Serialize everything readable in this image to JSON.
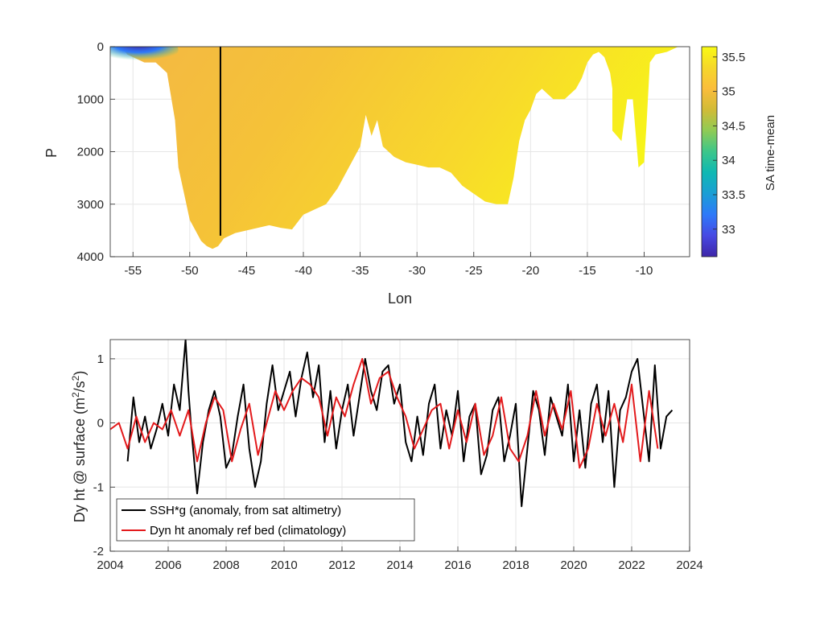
{
  "chart_data": [
    {
      "type": "heatmap",
      "title": "",
      "xlabel": "Lon",
      "ylabel": "P",
      "xlim": [
        -57,
        -6
      ],
      "ylim": [
        0,
        4000
      ],
      "y_reversed": true,
      "xticks": [
        -55,
        -50,
        -45,
        -40,
        -35,
        -30,
        -25,
        -20,
        -15,
        -10
      ],
      "yticks": [
        0,
        1000,
        2000,
        3000,
        4000
      ],
      "colorbar": {
        "label": "SA time-mean",
        "range": [
          32.6,
          35.65
        ],
        "ticks": [
          33,
          33.5,
          34,
          34.5,
          35,
          35.5
        ],
        "colors": [
          "#3e26a8",
          "#4749e3",
          "#2e79f9",
          "#1a9ed5",
          "#0fb8b3",
          "#3cc68a",
          "#8fcb55",
          "#d1bb37",
          "#fbbd3b",
          "#f5d72a",
          "#f9fa14"
        ]
      },
      "vertical_line_lon": -47.3,
      "vertical_line_range": [
        0,
        3600
      ],
      "bottom_depth_profile": [
        [
          -56,
          0
        ],
        [
          -55.5,
          150
        ],
        [
          -55,
          200
        ],
        [
          -54,
          300
        ],
        [
          -53,
          300
        ],
        [
          -52,
          500
        ],
        [
          -51.3,
          1400
        ],
        [
          -51,
          2300
        ],
        [
          -50.5,
          2800
        ],
        [
          -50,
          3300
        ],
        [
          -49.5,
          3500
        ],
        [
          -49,
          3700
        ],
        [
          -48.5,
          3800
        ],
        [
          -48,
          3850
        ],
        [
          -47.5,
          3800
        ],
        [
          -47,
          3650
        ],
        [
          -46,
          3550
        ],
        [
          -45,
          3500
        ],
        [
          -44,
          3450
        ],
        [
          -43,
          3400
        ],
        [
          -42,
          3450
        ],
        [
          -41,
          3480
        ],
        [
          -40,
          3200
        ],
        [
          -39,
          3100
        ],
        [
          -38,
          3000
        ],
        [
          -37,
          2700
        ],
        [
          -36,
          2300
        ],
        [
          -35,
          1900
        ],
        [
          -34.5,
          1300
        ],
        [
          -34,
          1700
        ],
        [
          -33.5,
          1400
        ],
        [
          -33,
          1900
        ],
        [
          -32,
          2100
        ],
        [
          -31,
          2200
        ],
        [
          -30,
          2250
        ],
        [
          -29,
          2300
        ],
        [
          -28,
          2300
        ],
        [
          -27,
          2400
        ],
        [
          -26,
          2650
        ],
        [
          -25,
          2800
        ],
        [
          -24,
          2950
        ],
        [
          -23,
          3000
        ],
        [
          -22,
          3000
        ],
        [
          -21.5,
          2500
        ],
        [
          -21,
          1800
        ],
        [
          -20.5,
          1400
        ],
        [
          -20,
          1200
        ],
        [
          -19.5,
          900
        ],
        [
          -19,
          800
        ],
        [
          -18.5,
          900
        ],
        [
          -18,
          1000
        ],
        [
          -17.5,
          1000
        ],
        [
          -17,
          1000
        ],
        [
          -16,
          800
        ],
        [
          -15.5,
          600
        ],
        [
          -15,
          300
        ],
        [
          -14.5,
          150
        ],
        [
          -14,
          100
        ],
        [
          -13.5,
          200
        ],
        [
          -13,
          500
        ],
        [
          -12.8,
          800
        ],
        [
          -12.8,
          1600
        ],
        [
          -12,
          1800
        ],
        [
          -11.5,
          1000
        ],
        [
          -11,
          1000
        ],
        [
          -10.5,
          2300
        ],
        [
          -10,
          2200
        ],
        [
          -9.8,
          1500
        ],
        [
          -9.5,
          300
        ],
        [
          -9,
          150
        ],
        [
          -8,
          100
        ],
        [
          -7,
          0
        ]
      ]
    },
    {
      "type": "line",
      "title": "",
      "xlabel": "",
      "ylabel": "Dy ht @ surface (m",
      "ylabel_sup": "2",
      "ylabel_mid": "/s",
      "ylabel_end": ")",
      "xlim": [
        2004,
        2024
      ],
      "ylim": [
        -2,
        1.3
      ],
      "xticks": [
        2004,
        2006,
        2008,
        2010,
        2012,
        2014,
        2016,
        2018,
        2020,
        2022,
        2024
      ],
      "yticks": [
        -2,
        -1,
        0,
        1
      ],
      "legend_position": "bottom-left",
      "series": [
        {
          "name": "SSH*g (anomaly, from sat altimetry)",
          "color": "#000000",
          "x": [
            2004.6,
            2004.8,
            2005.0,
            2005.2,
            2005.4,
            2005.6,
            2005.8,
            2006.0,
            2006.2,
            2006.4,
            2006.6,
            2006.7,
            2006.8,
            2007.0,
            2007.2,
            2007.4,
            2007.6,
            2007.8,
            2008.0,
            2008.2,
            2008.4,
            2008.6,
            2008.8,
            2009.0,
            2009.2,
            2009.4,
            2009.6,
            2009.8,
            2010.0,
            2010.2,
            2010.4,
            2010.6,
            2010.8,
            2011.0,
            2011.2,
            2011.4,
            2011.6,
            2011.8,
            2012.0,
            2012.2,
            2012.4,
            2012.6,
            2012.8,
            2013.0,
            2013.2,
            2013.4,
            2013.6,
            2013.8,
            2014.0,
            2014.2,
            2014.4,
            2014.6,
            2014.8,
            2015.0,
            2015.2,
            2015.4,
            2015.6,
            2015.8,
            2016.0,
            2016.2,
            2016.4,
            2016.6,
            2016.8,
            2017.0,
            2017.2,
            2017.4,
            2017.6,
            2017.8,
            2018.0,
            2018.2,
            2018.4,
            2018.6,
            2018.8,
            2019.0,
            2019.2,
            2019.4,
            2019.6,
            2019.8,
            2020.0,
            2020.2,
            2020.4,
            2020.6,
            2020.8,
            2021.0,
            2021.2,
            2021.4,
            2021.6,
            2021.8,
            2022.0,
            2022.2,
            2022.4,
            2022.6,
            2022.8,
            2023.0,
            2023.2,
            2023.4
          ],
          "values": [
            -0.6,
            0.4,
            -0.3,
            0.1,
            -0.4,
            -0.1,
            0.3,
            -0.2,
            0.6,
            0.2,
            1.3,
            0.5,
            -0.1,
            -1.1,
            -0.3,
            0.2,
            0.5,
            0.1,
            -0.7,
            -0.5,
            0.1,
            0.6,
            -0.4,
            -1.0,
            -0.6,
            0.3,
            0.9,
            0.2,
            0.5,
            0.8,
            0.1,
            0.7,
            1.1,
            0.4,
            0.9,
            -0.3,
            0.5,
            -0.4,
            0.2,
            0.6,
            -0.2,
            0.4,
            1.0,
            0.5,
            0.2,
            0.8,
            0.9,
            0.3,
            0.6,
            -0.3,
            -0.6,
            0.1,
            -0.5,
            0.3,
            0.6,
            -0.4,
            0.2,
            -0.2,
            0.5,
            -0.6,
            0.1,
            0.3,
            -0.8,
            -0.5,
            0.2,
            0.4,
            -0.6,
            -0.2,
            0.3,
            -1.3,
            -0.4,
            0.5,
            0.2,
            -0.5,
            0.4,
            0.1,
            -0.2,
            0.6,
            -0.6,
            0.2,
            -0.7,
            0.3,
            0.6,
            -0.3,
            0.5,
            -1.0,
            0.2,
            0.4,
            0.8,
            1.0,
            0.2,
            -0.6,
            0.9,
            -0.4,
            0.1,
            0.2
          ]
        },
        {
          "name": "Dyn ht anomaly ref bed (climatology)",
          "color": "#e31a1c",
          "x": [
            2004.0,
            2004.3,
            2004.6,
            2004.9,
            2005.2,
            2005.5,
            2005.8,
            2006.1,
            2006.4,
            2006.7,
            2007.0,
            2007.3,
            2007.6,
            2007.9,
            2008.2,
            2008.5,
            2008.8,
            2009.1,
            2009.4,
            2009.7,
            2010.0,
            2010.3,
            2010.6,
            2010.9,
            2011.2,
            2011.5,
            2011.8,
            2012.1,
            2012.4,
            2012.7,
            2013.0,
            2013.3,
            2013.6,
            2013.9,
            2014.2,
            2014.5,
            2014.8,
            2015.1,
            2015.4,
            2015.7,
            2016.0,
            2016.3,
            2016.6,
            2016.9,
            2017.2,
            2017.5,
            2017.8,
            2018.1,
            2018.4,
            2018.7,
            2019.0,
            2019.3,
            2019.6,
            2019.9,
            2020.2,
            2020.5,
            2020.8,
            2021.1,
            2021.4,
            2021.7,
            2022.0,
            2022.3,
            2022.6,
            2022.9
          ],
          "values": [
            -0.1,
            0.0,
            -0.4,
            0.1,
            -0.3,
            0.0,
            -0.1,
            0.2,
            -0.2,
            0.2,
            -0.6,
            0.0,
            0.4,
            0.2,
            -0.6,
            -0.1,
            0.3,
            -0.5,
            0.0,
            0.5,
            0.2,
            0.5,
            0.7,
            0.6,
            0.4,
            -0.2,
            0.4,
            0.1,
            0.6,
            1.0,
            0.3,
            0.7,
            0.8,
            0.4,
            0.1,
            -0.4,
            -0.1,
            0.2,
            0.3,
            -0.4,
            0.2,
            -0.3,
            0.3,
            -0.5,
            -0.2,
            0.4,
            -0.4,
            -0.6,
            -0.2,
            0.5,
            -0.2,
            0.3,
            -0.1,
            0.5,
            -0.7,
            -0.4,
            0.3,
            -0.2,
            0.3,
            -0.3,
            0.6,
            -0.6,
            0.5,
            -0.4
          ]
        }
      ]
    }
  ]
}
